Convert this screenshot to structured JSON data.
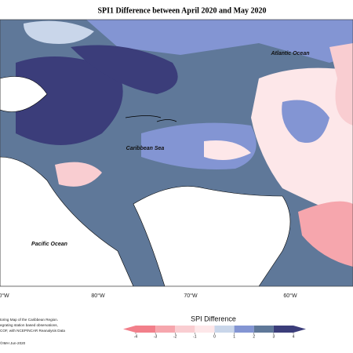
{
  "title": "SPI1 Difference between April 2020 and May 2020",
  "labels": [
    "Atlantic Ocean",
    "Caribbean Sea",
    "Pacific Ocean"
  ],
  "longitudes": [
    "0°W",
    "80°W",
    "70°W",
    "60°W"
  ],
  "notes": [
    "toring Map of the Caribbean Region.",
    "egrating station based observations,",
    "COF, with NCEP/NCAR Reanalysis Data"
  ],
  "credit": "©IMH Jun-2020",
  "colorbar": {
    "title": "SPI Difference",
    "ticks": [
      -4,
      -3,
      -2,
      -1,
      0,
      1,
      2,
      3,
      4
    ],
    "colors": [
      "#f27f8a",
      "#f6a6ad",
      "#f9cdd1",
      "#fde7e9",
      "#c9d6ea",
      "#8395d3",
      "#5f7899",
      "#3b3d7a"
    ]
  }
}
